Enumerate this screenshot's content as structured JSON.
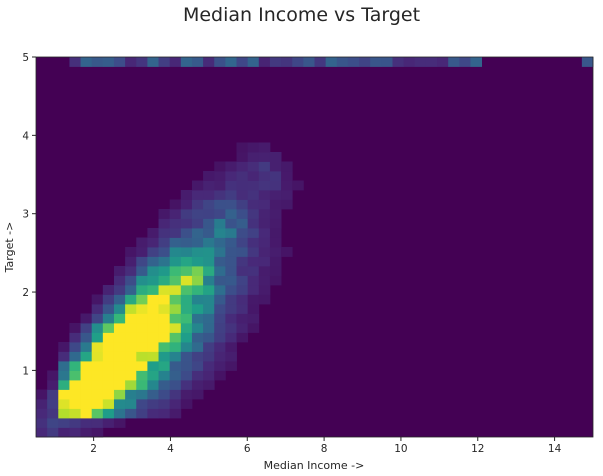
{
  "chart_data": {
    "type": "heatmap",
    "title": "Median Income vs Target",
    "xlabel": "Median Income  ->",
    "ylabel": "Target  ->",
    "xlim": [
      0.5,
      15.0
    ],
    "ylim": [
      0.15,
      5.0
    ],
    "xticks": [
      2,
      4,
      6,
      8,
      10,
      12,
      14
    ],
    "yticks": [
      1,
      2,
      3,
      4,
      5
    ],
    "colormap": "viridis",
    "grid": false,
    "legend": "none",
    "background_color": "#440154",
    "hotspots": [
      {
        "x": 1.6,
        "y": 0.62,
        "intensity": 0.55
      },
      {
        "x": 2.2,
        "y": 0.85,
        "intensity": 0.9
      },
      {
        "x": 2.6,
        "y": 1.2,
        "intensity": 0.75
      },
      {
        "x": 3.2,
        "y": 1.55,
        "intensity": 1.0
      },
      {
        "x": 3.8,
        "y": 1.8,
        "intensity": 0.55
      },
      {
        "x": 4.5,
        "y": 2.2,
        "intensity": 0.35
      },
      {
        "x": 5.5,
        "y": 2.8,
        "intensity": 0.25
      },
      {
        "x": 6.5,
        "y": 3.5,
        "intensity": 0.15
      }
    ],
    "top_band": {
      "y": 5.0,
      "x_range": [
        1.5,
        12.0
      ],
      "intensity": 0.22
    }
  }
}
